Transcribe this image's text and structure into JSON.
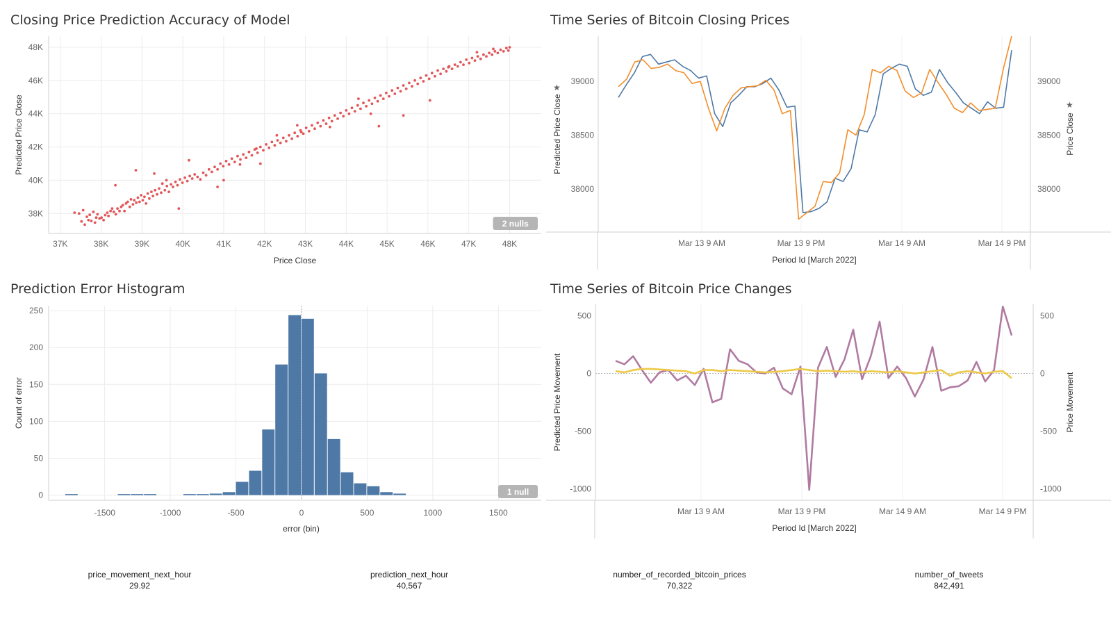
{
  "colors": {
    "scatter": "#e15759",
    "hist_bar": "#4e79a7",
    "close_actual": "#4e79a7",
    "close_pred": "#f28e2b",
    "move_actual": "#b07aa1",
    "move_pred": "#edc948",
    "grid": "#ececec",
    "axis": "#cfcfcf",
    "null_badge": "#b5b5b5"
  },
  "kpis": [
    {
      "label": "price_movement_next_hour",
      "value": "29.92"
    },
    {
      "label": "prediction_next_hour",
      "value": "40,567"
    },
    {
      "label": "number_of_recorded_bitcoin_prices",
      "value": "70,322"
    },
    {
      "label": "number_of_tweets",
      "value": "842,491"
    }
  ],
  "chart_data": [
    {
      "id": "scatter",
      "type": "scatter",
      "title": "Closing Price Prediction Accuracy of Model",
      "xlabel": "Price Close",
      "ylabel": "Predicted Price Close",
      "xlim": [
        36800,
        48400
      ],
      "ylim": [
        37300,
        48500
      ],
      "x_ticks": [
        37000,
        38000,
        39000,
        40000,
        41000,
        42000,
        43000,
        44000,
        45000,
        46000,
        47000,
        48000
      ],
      "x_tick_labels": [
        "37K",
        "38K",
        "39K",
        "40K",
        "41K",
        "42K",
        "43K",
        "44K",
        "45K",
        "46K",
        "47K",
        "48K"
      ],
      "y_ticks": [
        38000,
        40000,
        42000,
        44000,
        46000,
        48000
      ],
      "y_tick_labels": [
        "38K",
        "40K",
        "42K",
        "44K",
        "46K",
        "48K"
      ],
      "null_badge": "2 nulls",
      "points": [
        [
          37350,
          38050
        ],
        [
          37460,
          38000
        ],
        [
          37520,
          37520
        ],
        [
          37560,
          38200
        ],
        [
          37600,
          37330
        ],
        [
          37650,
          37800
        ],
        [
          37690,
          37600
        ],
        [
          37720,
          37920
        ],
        [
          37760,
          37550
        ],
        [
          37810,
          38100
        ],
        [
          37850,
          37450
        ],
        [
          37880,
          37750
        ],
        [
          37910,
          37950
        ],
        [
          37960,
          37700
        ],
        [
          38010,
          37750
        ],
        [
          38060,
          37600
        ],
        [
          38100,
          37900
        ],
        [
          38150,
          38050
        ],
        [
          38180,
          37850
        ],
        [
          38230,
          38150
        ],
        [
          38270,
          38300
        ],
        [
          38310,
          38100
        ],
        [
          38360,
          37950
        ],
        [
          38400,
          38300
        ],
        [
          38450,
          38150
        ],
        [
          38490,
          38400
        ],
        [
          38530,
          38500
        ],
        [
          38570,
          38150
        ],
        [
          38610,
          38600
        ],
        [
          38650,
          38700
        ],
        [
          38700,
          38400
        ],
        [
          38730,
          38850
        ],
        [
          38780,
          38550
        ],
        [
          38810,
          38800
        ],
        [
          38860,
          38650
        ],
        [
          38900,
          38950
        ],
        [
          38940,
          38700
        ],
        [
          38980,
          39100
        ],
        [
          39020,
          38800
        ],
        [
          39060,
          39000
        ],
        [
          39100,
          38600
        ],
        [
          39140,
          39200
        ],
        [
          39180,
          38900
        ],
        [
          39230,
          39300
        ],
        [
          39270,
          39050
        ],
        [
          39320,
          39400
        ],
        [
          39370,
          39150
        ],
        [
          39420,
          39500
        ],
        [
          39470,
          39250
        ],
        [
          39500,
          39800
        ],
        [
          39560,
          39400
        ],
        [
          39610,
          39650
        ],
        [
          39660,
          39300
        ],
        [
          39710,
          39750
        ],
        [
          39760,
          39600
        ],
        [
          39820,
          39900
        ],
        [
          39870,
          39700
        ],
        [
          39930,
          40050
        ],
        [
          39990,
          39850
        ],
        [
          40050,
          40150
        ],
        [
          40110,
          39950
        ],
        [
          40170,
          40250
        ],
        [
          40230,
          40100
        ],
        [
          40290,
          40350
        ],
        [
          40360,
          40200
        ],
        [
          40430,
          40050
        ],
        [
          40500,
          40450
        ],
        [
          40570,
          40300
        ],
        [
          40640,
          40650
        ],
        [
          40710,
          40500
        ],
        [
          40780,
          40800
        ],
        [
          40850,
          40650
        ],
        [
          40920,
          41000
        ],
        [
          40990,
          40850
        ],
        [
          41060,
          41150
        ],
        [
          41130,
          40950
        ],
        [
          41200,
          41300
        ],
        [
          41270,
          41100
        ],
        [
          41340,
          41450
        ],
        [
          41410,
          41250
        ],
        [
          41480,
          41550
        ],
        [
          41550,
          41350
        ],
        [
          41620,
          41700
        ],
        [
          41690,
          41500
        ],
        [
          41760,
          41850
        ],
        [
          41830,
          41650
        ],
        [
          41900,
          42000
        ],
        [
          41970,
          41800
        ],
        [
          42040,
          42150
        ],
        [
          42110,
          41950
        ],
        [
          42180,
          42300
        ],
        [
          42250,
          42100
        ],
        [
          42320,
          42400
        ],
        [
          42390,
          42250
        ],
        [
          42460,
          42550
        ],
        [
          42530,
          42350
        ],
        [
          42600,
          42700
        ],
        [
          42670,
          42500
        ],
        [
          42740,
          42850
        ],
        [
          42810,
          42650
        ],
        [
          42880,
          43000
        ],
        [
          42950,
          42800
        ],
        [
          43020,
          43150
        ],
        [
          43090,
          42950
        ],
        [
          43160,
          43300
        ],
        [
          43230,
          43100
        ],
        [
          43300,
          43450
        ],
        [
          43370,
          43250
        ],
        [
          43440,
          43600
        ],
        [
          43510,
          43400
        ],
        [
          43580,
          43750
        ],
        [
          43650,
          43550
        ],
        [
          43720,
          43900
        ],
        [
          43790,
          43700
        ],
        [
          43860,
          44050
        ],
        [
          43930,
          43850
        ],
        [
          44000,
          44200
        ],
        [
          44070,
          44000
        ],
        [
          44140,
          44350
        ],
        [
          44210,
          44150
        ],
        [
          44280,
          44500
        ],
        [
          44350,
          44300
        ],
        [
          44420,
          44650
        ],
        [
          44490,
          44450
        ],
        [
          44560,
          44800
        ],
        [
          44630,
          44600
        ],
        [
          44700,
          44950
        ],
        [
          44770,
          44750
        ],
        [
          44840,
          45100
        ],
        [
          44910,
          44900
        ],
        [
          44980,
          45250
        ],
        [
          45050,
          45050
        ],
        [
          45120,
          45400
        ],
        [
          45190,
          45200
        ],
        [
          45260,
          45550
        ],
        [
          45330,
          45350
        ],
        [
          45400,
          45700
        ],
        [
          45470,
          45500
        ],
        [
          45540,
          45850
        ],
        [
          45610,
          45650
        ],
        [
          45680,
          46000
        ],
        [
          45750,
          45800
        ],
        [
          45820,
          46150
        ],
        [
          45890,
          45950
        ],
        [
          45960,
          46300
        ],
        [
          46030,
          46100
        ],
        [
          46100,
          46450
        ],
        [
          46170,
          46250
        ],
        [
          46240,
          46600
        ],
        [
          46310,
          46400
        ],
        [
          46380,
          46700
        ],
        [
          46450,
          46550
        ],
        [
          46520,
          46850
        ],
        [
          46590,
          46700
        ],
        [
          46660,
          46950
        ],
        [
          46730,
          46850
        ],
        [
          46800,
          47100
        ],
        [
          46870,
          46950
        ],
        [
          46940,
          47250
        ],
        [
          47010,
          47050
        ],
        [
          47080,
          47350
        ],
        [
          47150,
          47200
        ],
        [
          47220,
          47450
        ],
        [
          47290,
          47300
        ],
        [
          47360,
          47550
        ],
        [
          47430,
          47450
        ],
        [
          47500,
          47650
        ],
        [
          47570,
          47550
        ],
        [
          47640,
          47750
        ],
        [
          47710,
          47650
        ],
        [
          47780,
          47850
        ],
        [
          47850,
          47750
        ],
        [
          47920,
          47950
        ],
        [
          47970,
          47800
        ],
        [
          46050,
          44800
        ],
        [
          45400,
          43900
        ],
        [
          44800,
          43250
        ],
        [
          42900,
          42900
        ],
        [
          41900,
          41000
        ],
        [
          41400,
          40950
        ],
        [
          41000,
          40000
        ],
        [
          40850,
          39600
        ],
        [
          40150,
          41200
        ],
        [
          39900,
          38300
        ],
        [
          39600,
          40000
        ],
        [
          39300,
          40400
        ],
        [
          38850,
          40600
        ],
        [
          38350,
          39700
        ],
        [
          41800,
          41900
        ],
        [
          42300,
          42700
        ],
        [
          42800,
          43300
        ],
        [
          43600,
          43200
        ],
        [
          44300,
          44900
        ],
        [
          44600,
          44000
        ],
        [
          46500,
          46800
        ],
        [
          47200,
          47700
        ],
        [
          47600,
          47900
        ],
        [
          48000,
          48000
        ]
      ]
    },
    {
      "id": "closing",
      "type": "line",
      "title": "Time Series of Bitcoin Closing Prices",
      "xlabel": "Period Id [March 2022]",
      "ylabel_left": "Predicted Price Close",
      "ylabel_right": "Price Close",
      "ylim": [
        37600,
        39420
      ],
      "x_tick_labels": [
        "Mar 13 9 AM",
        "Mar 13 9 PM",
        "Mar 14 9 AM",
        "Mar 14 9 PM"
      ],
      "y_ticks": [
        38000,
        38500,
        39000
      ],
      "series": [
        {
          "key": "actual",
          "values": [
            38850,
            38970,
            39080,
            39230,
            39250,
            39160,
            39180,
            39200,
            39140,
            39100,
            39030,
            39050,
            38700,
            38580,
            38800,
            38870,
            38950,
            38950,
            38980,
            39030,
            38920,
            38760,
            38770,
            37780,
            37790,
            37820,
            37880,
            38100,
            38070,
            38190,
            38550,
            38530,
            38690,
            39070,
            39120,
            39160,
            39140,
            38930,
            38870,
            38900,
            39110,
            38990,
            38900,
            38800,
            38750,
            38700,
            38810,
            38750,
            38760,
            39290
          ]
        },
        {
          "key": "predicted",
          "values": [
            38950,
            39020,
            39180,
            39200,
            39120,
            39130,
            39160,
            39100,
            39080,
            38980,
            39000,
            38750,
            38540,
            38750,
            38870,
            38940,
            38950,
            38960,
            39010,
            38920,
            38700,
            38730,
            37720,
            37780,
            37840,
            38070,
            38060,
            38150,
            38550,
            38500,
            38690,
            39110,
            39080,
            39140,
            39100,
            38910,
            38850,
            38890,
            39110,
            38990,
            38880,
            38750,
            38710,
            38800,
            38730,
            38740,
            38750,
            39120,
            39420
          ]
        }
      ]
    },
    {
      "id": "histogram",
      "type": "bar",
      "title": "Prediction Error Histogram",
      "xlabel": "error (bin)",
      "ylabel": "Count of error",
      "xlim": [
        -1900,
        1800
      ],
      "ylim": [
        -7,
        252
      ],
      "bin_width": 100,
      "x_ticks": [
        -1500,
        -1000,
        -500,
        0,
        500,
        1000,
        1500
      ],
      "x_tick_labels": [
        "-1500",
        "-1000",
        "-500",
        "0",
        "500",
        "1000",
        "1500"
      ],
      "y_ticks": [
        0,
        50,
        100,
        150,
        200,
        250
      ],
      "null_badge": "1 null",
      "bins": [
        -1750,
        -1350,
        -1250,
        -1150,
        -850,
        -750,
        -650,
        -550,
        -450,
        -350,
        -250,
        -150,
        -50,
        50,
        150,
        250,
        350,
        450,
        550,
        650,
        750
      ],
      "values": [
        1,
        1,
        1,
        1,
        1,
        1,
        2,
        4,
        18,
        33,
        89,
        177,
        244,
        239,
        165,
        76,
        31,
        16,
        12,
        4,
        2
      ]
    },
    {
      "id": "changes",
      "type": "line",
      "title": "Time Series of Bitcoin Price Changes",
      "xlabel": "Period Id [March 2022]",
      "ylabel_left": "Predicted Price Movement",
      "ylabel_right": "Price Movement",
      "ylim": [
        -1100,
        600
      ],
      "x_tick_labels": [
        "Mar 13 9 AM",
        "Mar 13 9 PM",
        "Mar 14 9 AM",
        "Mar 14 9 PM"
      ],
      "y_ticks": [
        500,
        0,
        -500,
        -1000
      ],
      "y_tick_labels": [
        "500",
        "0",
        "-500",
        "-1000"
      ],
      "series": [
        {
          "key": "actual",
          "values": [
            110,
            80,
            150,
            30,
            -80,
            10,
            30,
            -60,
            -20,
            -100,
            40,
            -250,
            -220,
            210,
            110,
            80,
            10,
            0,
            50,
            -130,
            -180,
            60,
            -1010,
            50,
            230,
            -30,
            120,
            380,
            -50,
            150,
            450,
            -40,
            60,
            -40,
            -200,
            -50,
            230,
            -150,
            -120,
            -110,
            -60,
            100,
            -70,
            30,
            580,
            330
          ]
        },
        {
          "key": "predicted",
          "values": [
            20,
            10,
            30,
            40,
            40,
            35,
            30,
            25,
            20,
            0,
            30,
            30,
            20,
            30,
            25,
            20,
            15,
            10,
            15,
            20,
            30,
            40,
            30,
            20,
            25,
            20,
            15,
            20,
            10,
            20,
            15,
            10,
            20,
            10,
            0,
            10,
            20,
            30,
            -20,
            10,
            20,
            10,
            0,
            15,
            20,
            -40
          ]
        }
      ]
    }
  ]
}
